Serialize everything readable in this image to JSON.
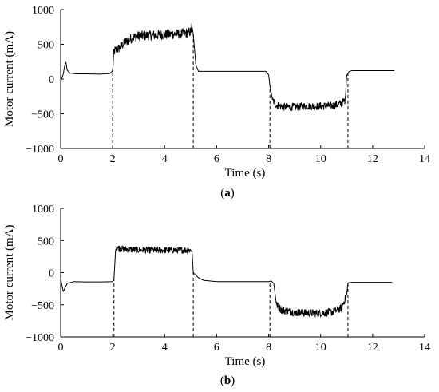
{
  "figure": {
    "background": "#ffffff",
    "line_color": "#000000"
  },
  "chart_data": [
    {
      "type": "line",
      "caption": "(a)",
      "caption_letter": "a",
      "xlabel": "Time (s)",
      "ylabel": "Motor current (mA)",
      "xlim": [
        0,
        14
      ],
      "ylim": [
        -1000,
        1000
      ],
      "xticks": [
        0,
        2,
        4,
        6,
        8,
        10,
        12,
        14
      ],
      "yticks": [
        -1000,
        -500,
        0,
        500,
        1000
      ],
      "ytick_labels": [
        "−1000",
        "−500",
        "0",
        "500",
        "1000"
      ],
      "grid": false,
      "markers_x": [
        2,
        5.1,
        8.05,
        11.05
      ],
      "series": [
        {
          "points": [
            [
              0,
              -30
            ],
            [
              0.1,
              70
            ],
            [
              0.15,
              180
            ],
            [
              0.2,
              250
            ],
            [
              0.25,
              130
            ],
            [
              0.35,
              85
            ],
            [
              0.6,
              75
            ],
            [
              1.0,
              75
            ],
            [
              1.5,
              70
            ],
            [
              1.9,
              80
            ],
            [
              2.0,
              120
            ],
            [
              2.05,
              400
            ],
            [
              2.2,
              430
            ],
            [
              2.4,
              500
            ],
            [
              2.6,
              560
            ],
            [
              2.8,
              600
            ],
            [
              3.0,
              620
            ],
            [
              3.5,
              630
            ],
            [
              4.0,
              640
            ],
            [
              4.5,
              650
            ],
            [
              4.8,
              660
            ],
            [
              5.0,
              680
            ],
            [
              5.05,
              760
            ],
            [
              5.1,
              650
            ],
            [
              5.2,
              200
            ],
            [
              5.3,
              110
            ],
            [
              6,
              110
            ],
            [
              7,
              110
            ],
            [
              7.9,
              110
            ],
            [
              8.0,
              60
            ],
            [
              8.05,
              -100
            ],
            [
              8.15,
              -300
            ],
            [
              8.3,
              -380
            ],
            [
              8.6,
              -400
            ],
            [
              9.0,
              -400
            ],
            [
              9.5,
              -390
            ],
            [
              10.0,
              -390
            ],
            [
              10.5,
              -380
            ],
            [
              10.8,
              -350
            ],
            [
              10.95,
              -300
            ],
            [
              11.0,
              50
            ],
            [
              11.1,
              110
            ],
            [
              11.2,
              120
            ],
            [
              12,
              120
            ],
            [
              12.85,
              120
            ]
          ],
          "noise": [
            [
              2.0,
              5.05,
              70
            ],
            [
              8.15,
              10.95,
              55
            ]
          ]
        }
      ]
    },
    {
      "type": "line",
      "caption": "(b)",
      "caption_letter": "b",
      "xlabel": "Time (s)",
      "ylabel": "Motor current (mA)",
      "xlim": [
        0,
        14
      ],
      "ylim": [
        -1000,
        1000
      ],
      "xticks": [
        0,
        2,
        4,
        6,
        8,
        10,
        12,
        14
      ],
      "yticks": [
        -1000,
        -500,
        0,
        500,
        1000
      ],
      "ytick_labels": [
        "−1000",
        "−500",
        "0",
        "500",
        "1000"
      ],
      "grid": false,
      "markers_x": [
        2.05,
        5.1,
        8.05,
        11.05
      ],
      "series": [
        {
          "points": [
            [
              0,
              -100
            ],
            [
              0.05,
              -200
            ],
            [
              0.1,
              -300
            ],
            [
              0.15,
              -250
            ],
            [
              0.25,
              -170
            ],
            [
              0.5,
              -140
            ],
            [
              1.0,
              -145
            ],
            [
              1.5,
              -145
            ],
            [
              2.0,
              -140
            ],
            [
              2.05,
              -100
            ],
            [
              2.12,
              400
            ],
            [
              2.3,
              370
            ],
            [
              3,
              350
            ],
            [
              4,
              350
            ],
            [
              5.05,
              350
            ],
            [
              5.1,
              0
            ],
            [
              5.3,
              -80
            ],
            [
              5.5,
              -120
            ],
            [
              6,
              -140
            ],
            [
              7,
              -140
            ],
            [
              8.0,
              -140
            ],
            [
              8.1,
              -130
            ],
            [
              8.2,
              -170
            ],
            [
              8.3,
              -500
            ],
            [
              8.5,
              -580
            ],
            [
              9,
              -620
            ],
            [
              9.5,
              -630
            ],
            [
              10,
              -630
            ],
            [
              10.5,
              -610
            ],
            [
              10.8,
              -550
            ],
            [
              11.0,
              -350
            ],
            [
              11.05,
              -160
            ],
            [
              11.2,
              -150
            ],
            [
              12,
              -150
            ],
            [
              12.75,
              -150
            ]
          ],
          "noise": [
            [
              2.12,
              5.05,
              50
            ],
            [
              8.3,
              11.0,
              60
            ]
          ]
        }
      ]
    }
  ]
}
